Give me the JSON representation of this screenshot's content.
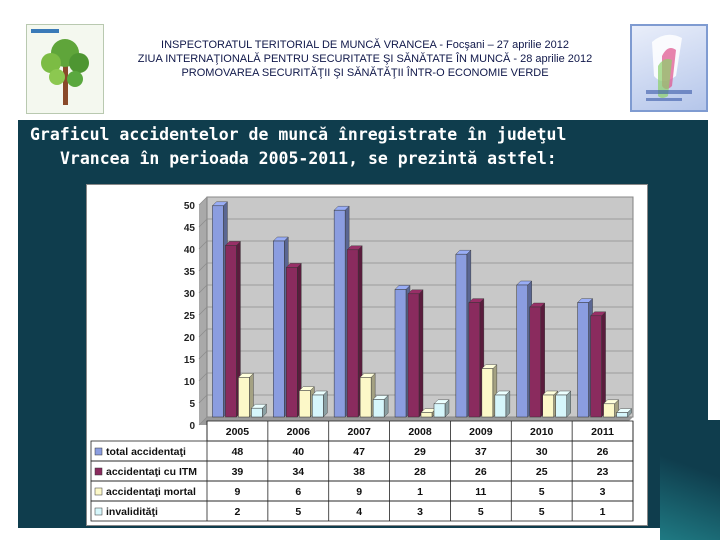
{
  "header": {
    "line1": "INSPECTORATUL TERITORIAL DE MUNCĂ VRANCEA - Focşani – 27 aprilie 2012",
    "line2": "ZIUA INTERNAŢIONALĂ PENTRU SECURITATE ŞI SĂNĂTATE ÎN MUNCĂ - 28 aprilie 2012",
    "line3": "PROMOVAREA SECURITĂŢII ŞI SĂNĂTĂŢII ÎNTR-O ECONOMIE VERDE"
  },
  "subtitle": {
    "line1": "Graficul accidentelor de muncă înregistrate în judeţul",
    "line2": "Vrancea în perioada 2005-2011, se prezintă astfel:"
  },
  "colors": {
    "slide_bg": "#0f3d4d",
    "plot_bg": "#c8c8c8"
  },
  "chart_data": {
    "type": "bar",
    "categories": [
      "2005",
      "2006",
      "2007",
      "2008",
      "2009",
      "2010",
      "2011"
    ],
    "ylim": [
      0,
      50
    ],
    "yticks": [
      0,
      5,
      10,
      15,
      20,
      25,
      30,
      35,
      40,
      45,
      50
    ],
    "grid": true,
    "legend": "data-table",
    "series": [
      {
        "name": "total accidentaţi",
        "color": "#8b9de0",
        "values": [
          48,
          40,
          47,
          29,
          37,
          30,
          26
        ]
      },
      {
        "name": "accidentaţi cu ITM",
        "color": "#8a2b5e",
        "values": [
          39,
          34,
          38,
          28,
          26,
          25,
          23
        ]
      },
      {
        "name": "accidentaţi mortal",
        "color": "#fcf8c8",
        "values": [
          9,
          6,
          9,
          1,
          11,
          5,
          3
        ]
      },
      {
        "name": "invalidităţi",
        "color": "#d6f6fb",
        "values": [
          2,
          5,
          4,
          3,
          5,
          5,
          1
        ]
      }
    ]
  }
}
